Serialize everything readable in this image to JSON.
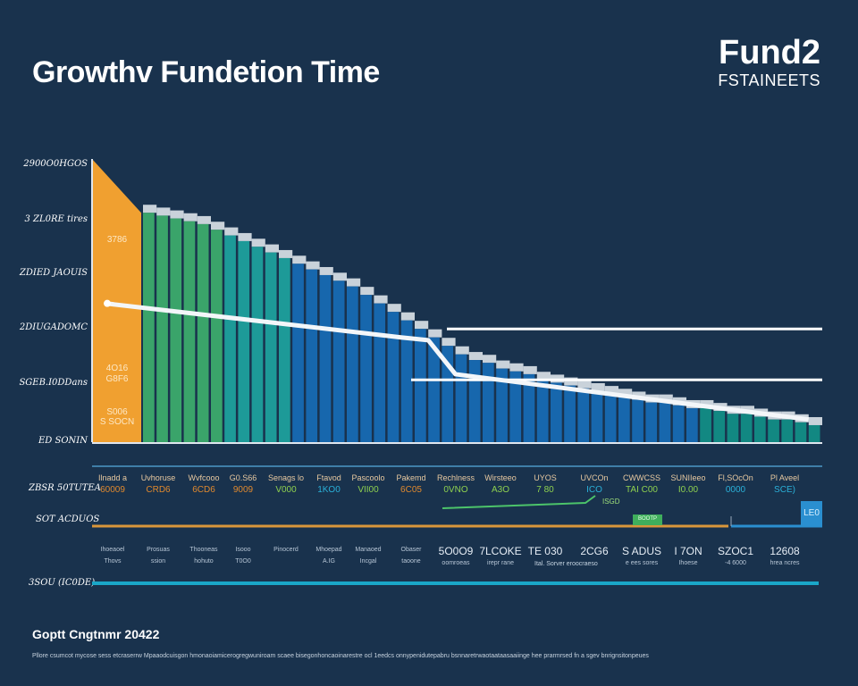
{
  "header": {
    "title": "Growthv Fundetion Time"
  },
  "logo": {
    "main": "Fund2",
    "sub": "FSTAINEETS"
  },
  "chart_data": {
    "type": "bar",
    "title": "Growthv Fundetion Time",
    "y_tick_labels": [
      "2900O0HGOS",
      "3 ZL0RE tires",
      "ZDIED JAOUIS",
      "2DIUGADOMC",
      "SGEB.I0DDans",
      "ED SONIN"
    ],
    "ylim": [
      0,
      100
    ],
    "grid": false,
    "bar_labels": [
      {
        "bar": 0,
        "lines": [
          "3786"
        ]
      },
      {
        "bar": 0,
        "lines": [
          "4O16",
          "G8F6"
        ]
      },
      {
        "bar": 0,
        "lines": [
          "S006",
          "S SOCN"
        ]
      }
    ],
    "values": [
      100,
      81,
      80,
      79,
      78,
      77,
      75,
      73,
      71,
      69,
      67,
      65,
      63,
      61,
      59,
      57,
      55,
      52,
      49,
      46,
      43,
      40,
      37,
      34,
      31,
      29,
      28,
      26,
      25,
      24,
      22,
      21,
      20,
      19,
      18,
      17,
      16,
      15,
      14,
      14,
      13,
      12,
      12,
      11,
      10,
      10,
      9,
      8,
      8,
      7,
      6
    ],
    "trend_line": [
      [
        0,
        49
      ],
      [
        20,
        37
      ],
      [
        22,
        36
      ],
      [
        24,
        24
      ],
      [
        50,
        8
      ]
    ],
    "reference_lines": [
      40,
      22
    ],
    "colors": {
      "first": "#f0a030",
      "green": "#3aa46a",
      "teal": "#1d9a98",
      "blue": "#1767ad",
      "teal_end": "#128882",
      "cap": "#dde3ea"
    }
  },
  "table": {
    "row_labels": [
      "ZBSR 50TUTEA",
      "SOT ACDUOS",
      "3SOU (IC0DE)"
    ],
    "top_row": [
      {
        "name": "Ilnadd a",
        "value": "60009",
        "color": "#e0892e"
      },
      {
        "name": "Uvhoruse",
        "value": "CRD6",
        "color": "#e0892e"
      },
      {
        "name": "Wvfcooo",
        "value": "6CD6",
        "color": "#e0892e"
      },
      {
        "name": "G0.S66",
        "value": "9009",
        "color": "#e0892e"
      },
      {
        "name": "Senags lo",
        "value": "V000",
        "color": "#8fd14f"
      },
      {
        "name": "Ftavod",
        "value": "1KO0",
        "color": "#2ab0d8"
      },
      {
        "name": "Pascoolo",
        "value": "VII00",
        "color": "#8fd14f"
      },
      {
        "name": "Pakemd",
        "value": "6C05",
        "color": "#e0892e"
      },
      {
        "name": "Rechlness",
        "value": "0VNO",
        "color": "#8fd14f"
      },
      {
        "name": "Wirsteeo",
        "value": "A3O",
        "color": "#8fd14f"
      },
      {
        "name": "UYOS",
        "value": "7 80",
        "color": "#8fd14f"
      },
      {
        "name": "UVCOn",
        "value": "ICO",
        "color": "#2ab0d8"
      },
      {
        "name": "CWWCSS",
        "value": "TAI C00",
        "color": "#8fd14f"
      },
      {
        "name": "SUNIIeeo",
        "value": "I0.00",
        "color": "#8fd14f"
      },
      {
        "name": "Fl,SOcOn",
        "value": "0000",
        "color": "#2ab0d8"
      },
      {
        "name": "Pl Aveel",
        "value": "SCE)",
        "color": "#2ab0d8"
      }
    ],
    "badges": {
      "green_small": "ISGD",
      "green_box": "BOOTP",
      "blue_box": "LE0"
    },
    "bottom_row": [
      {
        "big": "",
        "lines": [
          "Ihoeaoel",
          "Thovs"
        ]
      },
      {
        "big": "",
        "lines": [
          "Prosuas",
          "ssion"
        ]
      },
      {
        "big": "",
        "lines": [
          "Thooneas",
          "hohuto"
        ]
      },
      {
        "big": "",
        "lines": [
          "Isooo",
          "T0O0"
        ]
      },
      {
        "big": "",
        "lines": [
          "Pinocerd",
          ""
        ]
      },
      {
        "big": "",
        "lines": [
          "Mhoepad",
          "A.IG"
        ]
      },
      {
        "big": "",
        "lines": [
          "Manaoed",
          "Incgal"
        ]
      },
      {
        "big": "",
        "lines": [
          "Obaser",
          "taoone"
        ]
      },
      {
        "big": "5O0O9",
        "lines": [
          "oomroeas"
        ]
      },
      {
        "big": "7LCOKE",
        "lines": [
          "irepr rane"
        ]
      },
      {
        "big": "TE 030",
        "lines": [
          ""
        ]
      },
      {
        "big": "2CG6",
        "lines": [
          ""
        ]
      },
      {
        "big": "S ADUS",
        "lines": [
          "e ees sores"
        ]
      },
      {
        "big": "I 7ON",
        "lines": [
          "Ihoese"
        ]
      },
      {
        "big": "SZOC1",
        "lines": [
          "-4 6000"
        ]
      },
      {
        "big": "12608",
        "lines": [
          "hrea ncres"
        ]
      }
    ],
    "note": "Ital. Sorver eroocraeso"
  },
  "footer": {
    "copyright": "Goptt Cngtnmr 20422",
    "note": "Pllore csumcot mycose sess etcraserrw Mpaaodcuisgon hmonaoiamicerogregwuniroam scaee bisegonhoncaoinarestre ocl 1eedcs onnypenidutepabru bsnnaretrwaotaataasaaiinge hee prarmrsed fn a sgev bnrignsitonpeues"
  }
}
